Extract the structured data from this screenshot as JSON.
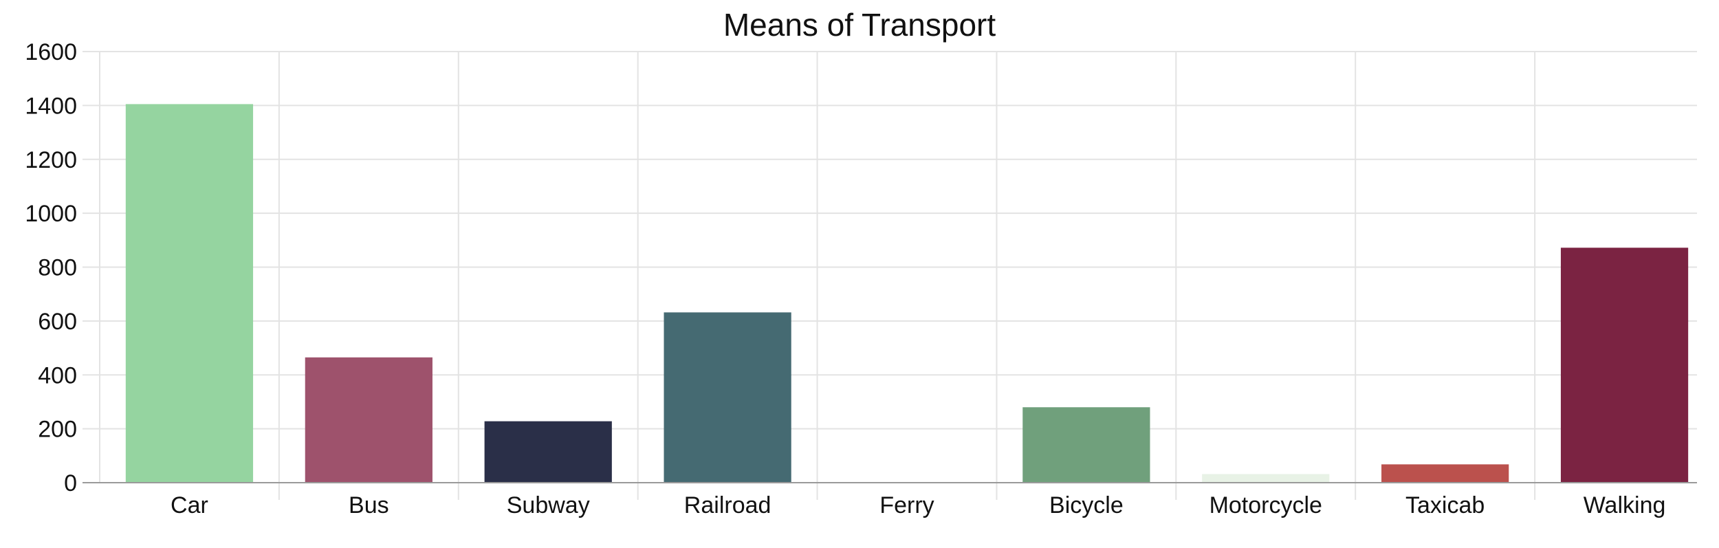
{
  "chart_data": {
    "type": "bar",
    "title": "Means of Transport",
    "xlabel": "",
    "ylabel": "",
    "categories": [
      "Car",
      "Bus",
      "Subway",
      "Railroad",
      "Ferry",
      "Bicycle",
      "Motorcycle",
      "Taxicab",
      "Walking"
    ],
    "values": [
      1405,
      465,
      228,
      632,
      0,
      280,
      32,
      68,
      872
    ],
    "colors": [
      "#95d4a0",
      "#9e526c",
      "#2a2f48",
      "#456a72",
      "#ffffff",
      "#70a07c",
      "#e8f2e6",
      "#bb514d",
      "#7b2342"
    ],
    "ylim": [
      0,
      1600
    ],
    "yticks": [
      0,
      200,
      400,
      600,
      800,
      1000,
      1200,
      1400,
      1600
    ],
    "grid": true,
    "legend": "none"
  }
}
